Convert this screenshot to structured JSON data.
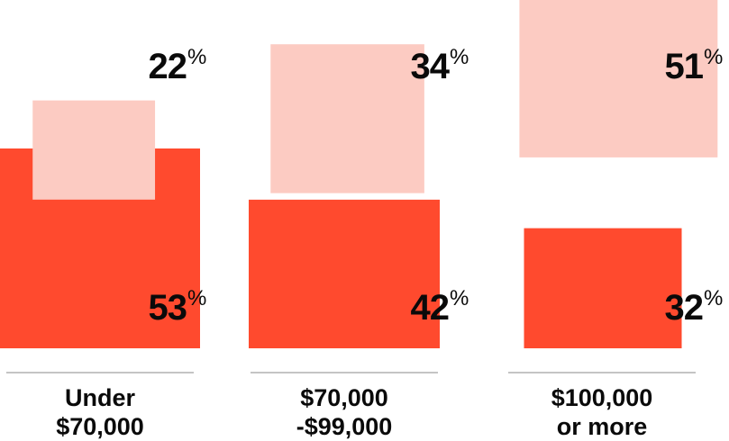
{
  "chart_data": {
    "type": "bar",
    "title": "",
    "xlabel": "",
    "ylabel": "",
    "ylim": [
      0,
      60
    ],
    "grid": false,
    "legend": "none",
    "categories": [
      [
        "Under",
        "$70,000"
      ],
      [
        "$70,000",
        "-$99,000"
      ],
      [
        "$100,000",
        "or more"
      ]
    ],
    "series": [
      {
        "values": [
          53,
          42,
          32
        ],
        "color": "#ff4a2e",
        "labels": [
          "53",
          "42",
          "32"
        ]
      },
      {
        "values": [
          22,
          34,
          51
        ],
        "color": "#fccbc2",
        "labels": [
          "22",
          "34",
          "51"
        ]
      }
    ],
    "unit_symbol": "%",
    "axis_line_color": "#8a8a8a"
  }
}
